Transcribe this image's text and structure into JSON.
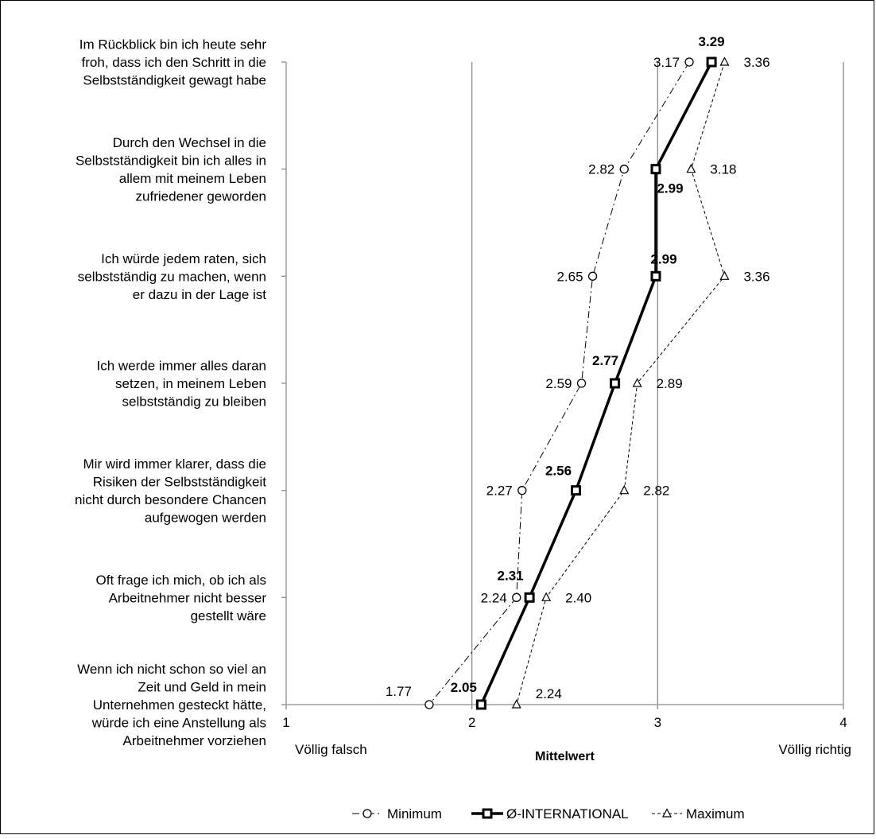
{
  "chart_data": {
    "type": "line",
    "orientation": "horizontal",
    "categories": [
      [
        "Im Rückblick bin ich heute sehr",
        "froh, dass ich den Schritt in die",
        "Selbstständigkeit gewagt habe"
      ],
      [
        "Durch den Wechsel in die",
        "Selbstständigkeit bin ich alles in",
        "allem mit meinem Leben",
        "zufriedener geworden"
      ],
      [
        "Ich würde jedem raten, sich",
        "selbstständig zu machen, wenn",
        "er dazu in der Lage ist"
      ],
      [
        "Ich werde immer alles daran",
        "setzen, in meinem Leben",
        "selbstständig zu bleiben"
      ],
      [
        "Mir wird immer klarer, dass die",
        "Risiken der Selbstständigkeit",
        "nicht durch besondere Chancen",
        "aufgewogen werden"
      ],
      [
        "Oft frage ich mich, ob ich als",
        "Arbeitnehmer nicht besser",
        "gestellt wäre"
      ],
      [
        "Wenn ich nicht schon so viel an",
        "Zeit und Geld in mein",
        "Unternehmen gesteckt hätte,",
        "würde ich eine Anstellung als",
        "Arbeitnehmer vorziehen"
      ]
    ],
    "series": [
      {
        "name": "Minimum",
        "values": [
          3.17,
          2.82,
          2.65,
          2.59,
          2.27,
          2.24,
          1.77
        ],
        "labels": [
          "3.17",
          "2.82",
          "2.65",
          "2.59",
          "2.27",
          "2.24",
          "1.77"
        ]
      },
      {
        "name": "Ø-INTERNATIONAL",
        "values": [
          3.29,
          2.99,
          2.99,
          2.77,
          2.56,
          2.31,
          2.05
        ],
        "labels": [
          "3.29",
          "2.99",
          "2.99",
          "2.77",
          "2.56",
          "2.31",
          "2.05"
        ]
      },
      {
        "name": "Maximum",
        "values": [
          3.36,
          3.18,
          3.36,
          2.89,
          2.82,
          2.4,
          2.24
        ],
        "labels": [
          "3.36",
          "3.18",
          "3.36",
          "2.89",
          "2.82",
          "2.40",
          "2.24"
        ]
      }
    ],
    "xlim": [
      1,
      4
    ],
    "xticks": [
      "1",
      "2",
      "3",
      "4"
    ],
    "xlabel": "Mittelwert",
    "x_left_label": "Völlig falsch",
    "x_right_label": "Völlig richtig",
    "grid": true,
    "legend_position": "bottom"
  }
}
